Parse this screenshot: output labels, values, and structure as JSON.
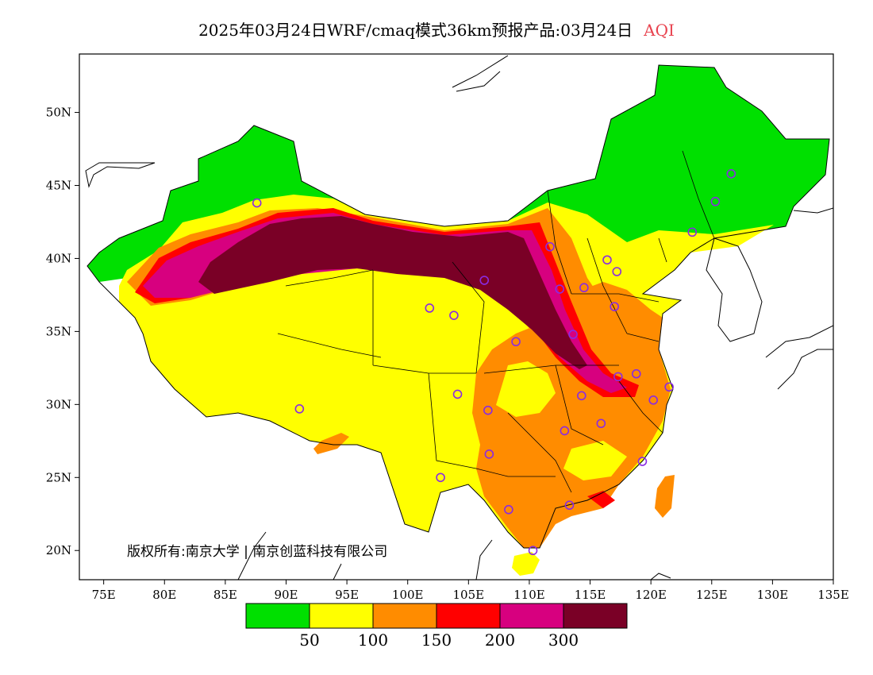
{
  "title": {
    "text": "2025年03月24日WRF/cmaq模式36km预报产品:03月24日",
    "variable": "AQI"
  },
  "map": {
    "lon_ticks": [
      "75E",
      "80E",
      "85E",
      "90E",
      "95E",
      "100E",
      "105E",
      "110E",
      "115E",
      "120E",
      "125E",
      "130E",
      "135E"
    ],
    "lat_ticks": [
      "20N",
      "25N",
      "30N",
      "35N",
      "40N",
      "45N",
      "50N"
    ]
  },
  "legend": {
    "colors": [
      "#00e000",
      "#ffff00",
      "#ff8c00",
      "#ff0000",
      "#d7007f",
      "#7a0026"
    ],
    "labels": [
      "50",
      "100",
      "150",
      "200",
      "300"
    ]
  },
  "copyright": "版权所有:南京大学 | 南京创蓝科技有限公司",
  "stations": [
    [
      87.6,
      43.8
    ],
    [
      91.1,
      29.7
    ],
    [
      101.8,
      36.6
    ],
    [
      103.8,
      36.1
    ],
    [
      106.3,
      38.5
    ],
    [
      104.1,
      30.7
    ],
    [
      106.6,
      29.6
    ],
    [
      106.7,
      26.6
    ],
    [
      102.7,
      25.0
    ],
    [
      108.3,
      22.8
    ],
    [
      110.3,
      20.0
    ],
    [
      113.3,
      23.1
    ],
    [
      112.9,
      28.2
    ],
    [
      114.3,
      30.6
    ],
    [
      115.9,
      28.7
    ],
    [
      117.3,
      31.9
    ],
    [
      118.8,
      32.1
    ],
    [
      120.2,
      30.3
    ],
    [
      121.5,
      31.2
    ],
    [
      119.3,
      26.1
    ],
    [
      113.6,
      34.8
    ],
    [
      108.9,
      34.3
    ],
    [
      112.5,
      37.9
    ],
    [
      114.5,
      38.0
    ],
    [
      116.4,
      39.9
    ],
    [
      117.2,
      39.1
    ],
    [
      117.0,
      36.7
    ],
    [
      111.7,
      40.8
    ],
    [
      123.4,
      41.8
    ],
    [
      125.3,
      43.9
    ],
    [
      126.6,
      45.8
    ]
  ]
}
